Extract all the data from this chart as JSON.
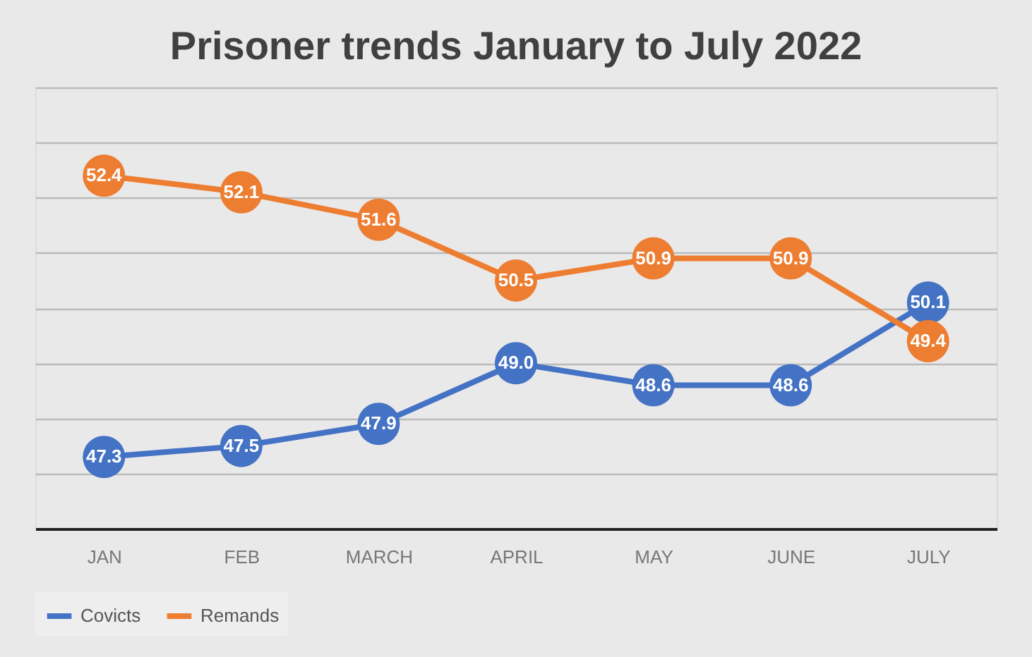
{
  "chart_data": {
    "type": "line",
    "title": "Prisoner trends January to July 2022",
    "categories": [
      "JAN",
      "FEB",
      "MARCH",
      "APRIL",
      "MAY",
      "JUNE",
      "JULY"
    ],
    "series": [
      {
        "name": "Covicts",
        "color": "#4472c4",
        "values": [
          47.3,
          47.5,
          47.9,
          49.0,
          48.6,
          48.6,
          50.1
        ],
        "value_labels": [
          "47.3",
          "47.5",
          "47.9",
          "49.0",
          "48.6",
          "48.6",
          "50.1"
        ]
      },
      {
        "name": "Remands",
        "color": "#ed7d31",
        "values": [
          52.4,
          52.1,
          51.6,
          50.5,
          50.9,
          50.9,
          49.4
        ],
        "value_labels": [
          "52.4",
          "52.1",
          "51.6",
          "50.5",
          "50.9",
          "50.9",
          "49.4"
        ]
      }
    ],
    "tick_labels": "x",
    "grid": "y",
    "legend": "bottom",
    "marker": "circle",
    "line_style": "solid"
  }
}
